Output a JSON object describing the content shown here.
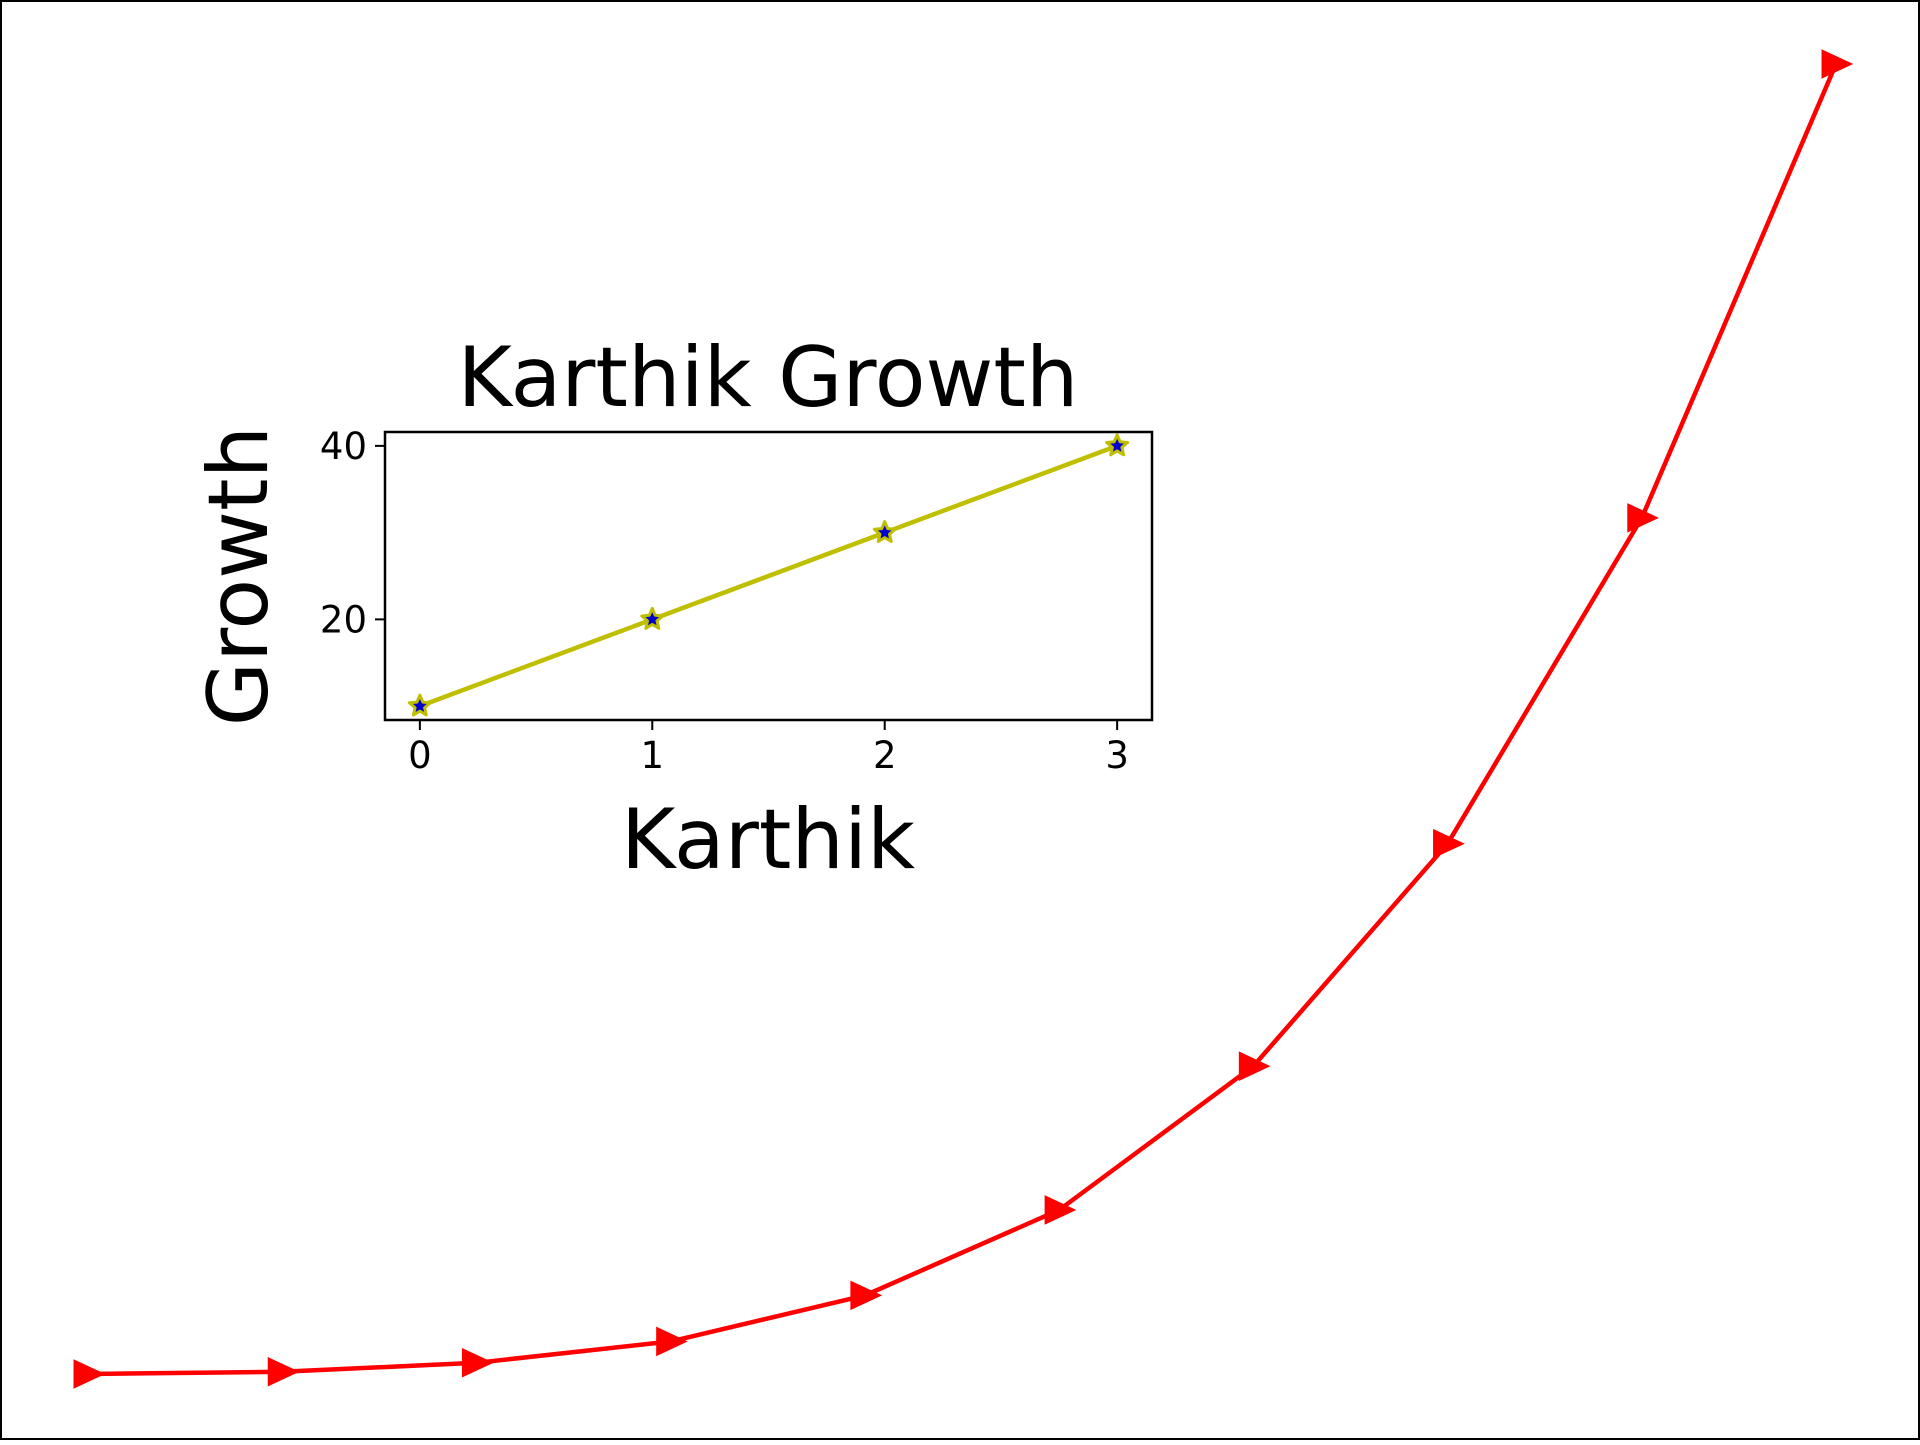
{
  "chart_data": [
    {
      "type": "line",
      "title": "",
      "xlabel": "",
      "ylabel": "",
      "axes_visible": false,
      "grid": false,
      "x": [
        0,
        1,
        2,
        3,
        4,
        5,
        6,
        7,
        8,
        9
      ],
      "series": [
        {
          "values": [
            0.1,
            0.3,
            1.1,
            3.0,
            7.1,
            14.7,
            27.5,
            47.3,
            76.3,
            116.7
          ],
          "color": "#ff0000",
          "marker": "triangle-right"
        }
      ]
    },
    {
      "type": "line",
      "title": "Karthik Growth",
      "xlabel": "Karthik",
      "ylabel": "Growth",
      "grid": false,
      "x": [
        0,
        1,
        2,
        3
      ],
      "xticks": [
        "0",
        "1",
        "2",
        "3"
      ],
      "yticks": [
        "20",
        "40"
      ],
      "xlim": [
        -0.15,
        3.15
      ],
      "ylim": [
        8.4,
        41.6
      ],
      "series": [
        {
          "values": [
            10,
            20,
            30,
            40
          ],
          "color": "#bfbf00",
          "marker": "star",
          "marker_face_color": "#0000cc"
        }
      ]
    }
  ]
}
